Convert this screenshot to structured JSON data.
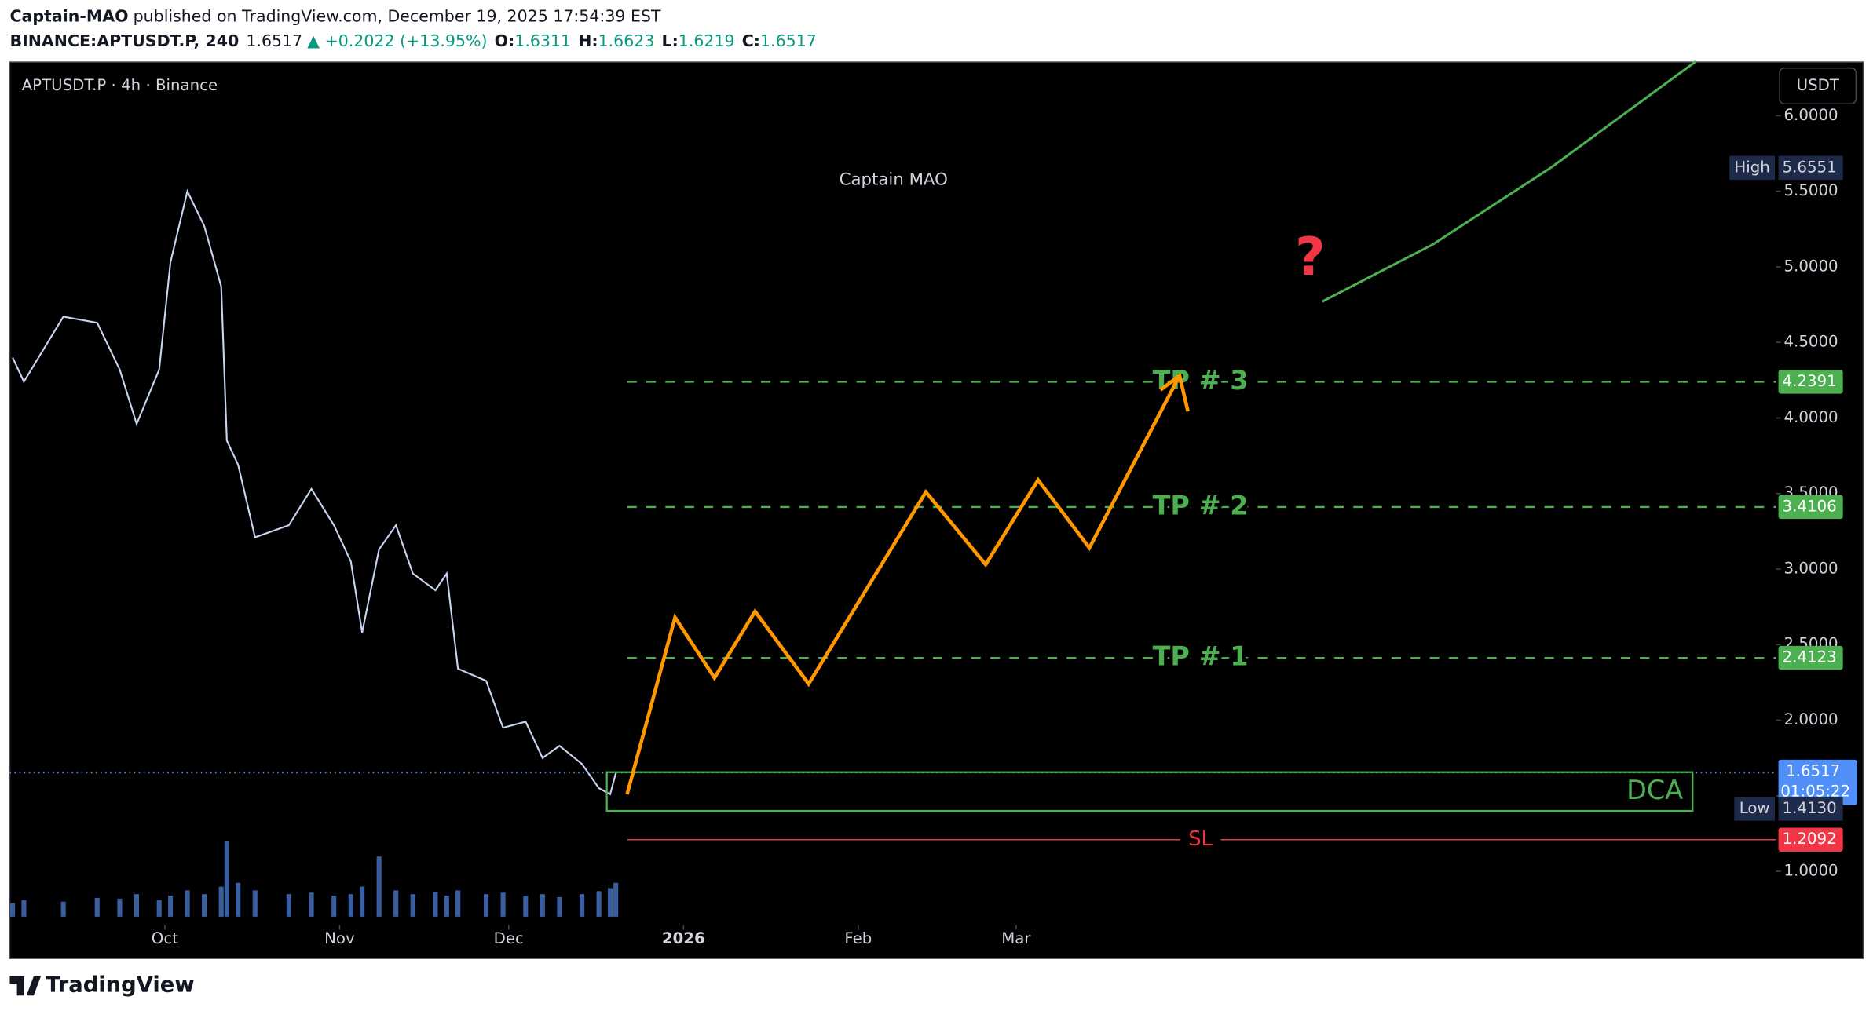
{
  "header": {
    "author": "Captain-MAO",
    "published": "published on TradingView.com, December 19, 2025 17:54:39 EST",
    "symbol": "BINANCE:APTUSDT.P, 240",
    "last": "1.6517",
    "change": "▲ +0.2022 (+13.95%)",
    "ohlc": [
      [
        "O:",
        "1.6311"
      ],
      [
        "H:",
        "1.6623"
      ],
      [
        "L:",
        "1.6219"
      ],
      [
        "C:",
        "1.6517"
      ]
    ]
  },
  "chart_data": {
    "type": "line",
    "title": "APTUSDT.P · 4h · Binance",
    "watermark": "Captain MAO",
    "axis_unit": "USDT",
    "annotation": "?",
    "xlim": [
      2.5,
      315.8
    ],
    "ylim": [
      0.423,
      6.355
    ],
    "xticks": [
      {
        "value": 30,
        "label": "Oct"
      },
      {
        "value": 61,
        "label": "Nov"
      },
      {
        "value": 91,
        "label": "Dec"
      },
      {
        "value": 122,
        "label": "2026"
      },
      {
        "value": 153,
        "label": "Feb"
      },
      {
        "value": 181,
        "label": "Mar"
      }
    ],
    "yticks": [
      {
        "value": 6,
        "label": "6.0000"
      },
      {
        "value": 5.5,
        "label": "5.5000"
      },
      {
        "value": 5,
        "label": "5.0000"
      },
      {
        "value": 4.5,
        "label": "4.5000"
      },
      {
        "value": 4,
        "label": "4.0000"
      },
      {
        "value": 3.5,
        "label": "3.5000"
      },
      {
        "value": 3,
        "label": "3.0000"
      },
      {
        "value": 2.5,
        "label": "2.5000"
      },
      {
        "value": 2,
        "label": "2.0000"
      },
      {
        "value": 1.5,
        "label": "1.5000"
      },
      {
        "value": 1,
        "label": "1.0000"
      }
    ],
    "x": [
      3,
      5,
      12,
      18,
      22,
      25,
      29,
      31,
      34,
      37,
      40,
      41,
      43,
      46,
      52,
      56,
      60,
      63,
      65,
      68,
      71,
      74,
      78,
      80,
      82,
      87,
      90,
      94,
      97,
      100,
      104,
      107,
      109,
      110
    ],
    "series": [
      {
        "color": "#c8d4f0",
        "values": [
          4.4,
          4.24,
          4.67,
          4.63,
          4.32,
          3.96,
          4.32,
          5.03,
          5.5,
          5.27,
          4.87,
          3.85,
          3.69,
          3.21,
          3.29,
          3.53,
          3.29,
          3.05,
          2.58,
          3.13,
          3.29,
          2.97,
          2.86,
          2.97,
          2.34,
          2.26,
          1.95,
          1.99,
          1.75,
          1.83,
          1.71,
          1.55,
          1.51,
          1.65
        ]
      }
    ],
    "volume": {
      "color": "#3a5fa0",
      "values": [
        18,
        22,
        20,
        25,
        24,
        30,
        22,
        28,
        35,
        30,
        40,
        100,
        45,
        35,
        30,
        32,
        28,
        30,
        40,
        80,
        35,
        30,
        33,
        28,
        35,
        30,
        32,
        28,
        30,
        26,
        30,
        34,
        38,
        45
      ]
    },
    "projection": {
      "color": "#ff9800",
      "x": [
        112,
        120.5,
        127.5,
        134.7,
        144.2,
        165,
        175.6,
        184.9,
        194,
        210
      ],
      "values": [
        1.51,
        2.68,
        2.28,
        2.72,
        2.24,
        3.51,
        3.03,
        3.59,
        3.14,
        4.28
      ]
    },
    "curve": {
      "color": "#4caf50",
      "x": [
        235.3,
        255,
        276,
        301.6
      ],
      "values": [
        4.77,
        5.15,
        5.66,
        6.36
      ]
    },
    "levels": [
      {
        "label": "TP # 3",
        "value": 4.2391,
        "color": "#4caf50"
      },
      {
        "label": "TP # 2",
        "value": 3.4106,
        "color": "#4caf50"
      },
      {
        "label": "TP # 1",
        "value": 2.4123,
        "color": "#4caf50"
      },
      {
        "label": "SL",
        "value": 1.2092,
        "color": "#f23645"
      }
    ],
    "zone": {
      "label": "DCA",
      "color": "#4caf50",
      "xlim": [
        108.4,
        301
      ],
      "ylim": [
        1.4,
        1.656
      ]
    },
    "high": {
      "name": "High",
      "value": 5.6551
    },
    "low": {
      "name": "Low",
      "value": 1.413,
      "label": "1.4130"
    },
    "current": {
      "value": 1.6517,
      "label": "1.6517",
      "countdown": "01:05:22"
    }
  },
  "footer": {
    "logo": "TradingView"
  }
}
